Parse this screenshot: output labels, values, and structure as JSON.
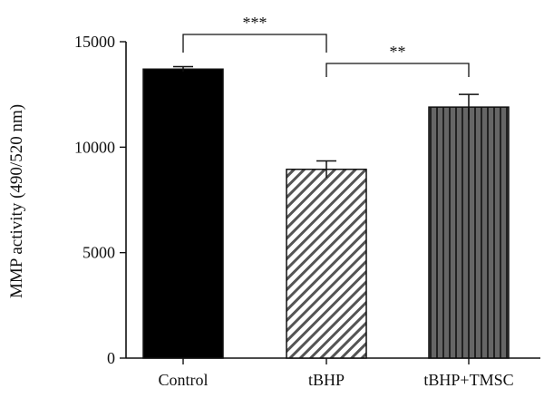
{
  "chart_data": {
    "type": "bar",
    "categories": [
      "Control",
      "tBHP",
      "tBHP+TMSC"
    ],
    "values": [
      13700,
      8950,
      11900
    ],
    "errors": [
      120,
      400,
      600
    ],
    "ylabel": "MMP activity (490/520 nm)",
    "xlabel": "",
    "ylim": [
      0,
      15000
    ],
    "yticks": [
      0,
      5000,
      10000,
      15000
    ],
    "ytick_labels": [
      "0",
      "5000",
      "10000",
      "15000"
    ],
    "bar_styles": [
      {
        "fill": "solid",
        "color": "#000000"
      },
      {
        "fill": "diagonal-hatch",
        "color": "#555555"
      },
      {
        "fill": "vertical-stripes",
        "color": "#555555"
      }
    ],
    "significance": [
      {
        "from": 0,
        "to": 1,
        "label": "***"
      },
      {
        "from": 1,
        "to": 2,
        "label": "**"
      }
    ],
    "grid": false,
    "legend": "none"
  }
}
